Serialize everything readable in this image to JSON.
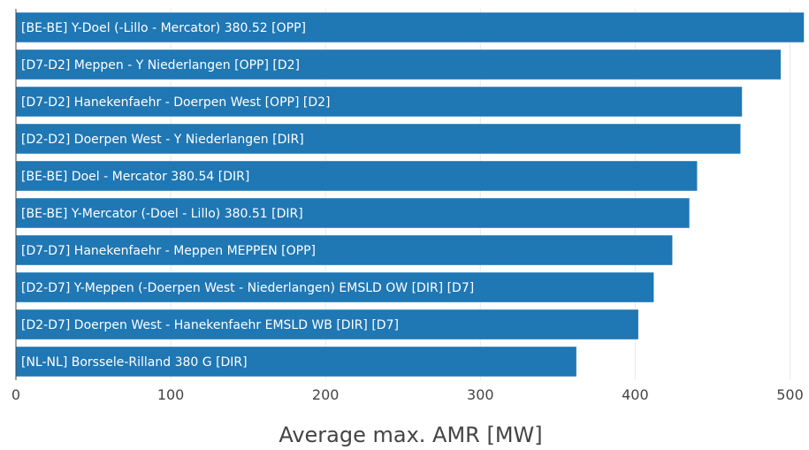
{
  "chart_data": {
    "type": "bar",
    "orientation": "horizontal",
    "categories": [
      "[BE-BE] Y-Doel (-Lillo - Mercator) 380.52 [OPP]",
      "[D7-D2] Meppen - Y Niederlangen [OPP] [D2]",
      "[D7-D2] Hanekenfaehr - Doerpen West [OPP] [D2]",
      "[D2-D2] Doerpen West - Y Niederlangen [DIR]",
      "[BE-BE] Doel - Mercator 380.54 [DIR]",
      "[BE-BE] Y-Mercator (-Doel - Lillo) 380.51 [DIR]",
      "[D7-D7] Hanekenfaehr - Meppen MEPPEN [OPP]",
      "[D2-D7] Y-Meppen (-Doerpen West - Niederlangen) EMSLD OW [DIR] [D7]",
      "[D2-D7] Doerpen West - Hanekenfaehr EMSLD WB [DIR] [D7]",
      "[NL-NL] Borssele-Rilland 380 G [DIR]"
    ],
    "values": [
      509,
      494,
      469,
      468,
      440,
      435,
      424,
      412,
      402,
      362
    ],
    "xlabel": "Average max. AMR [MW]",
    "ylabel": "",
    "title": "",
    "xlim": [
      0,
      510
    ],
    "xticks": [
      0,
      100,
      200,
      300,
      400,
      500
    ],
    "xtick_labels": [
      "0",
      "100",
      "200",
      "300",
      "400",
      "500"
    ],
    "grid": true,
    "colors": {
      "bar": "#1f77b4",
      "bar_label": "#ffffff",
      "grid": "#e9e9e9",
      "axis": "#444444"
    }
  }
}
